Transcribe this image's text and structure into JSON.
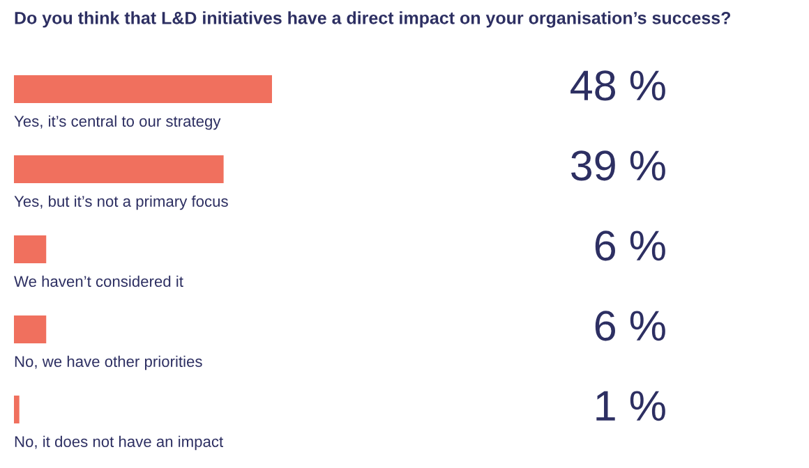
{
  "chart_data": {
    "type": "bar",
    "orientation": "horizontal",
    "title": "Do you think that L&D initiatives have a direct impact on your organisation’s success?",
    "categories": [
      "Yes, it’s central to our strategy",
      "Yes, but it’s not a primary focus",
      "We haven’t considered it",
      "No, we have other priorities",
      "No, it does not have an impact"
    ],
    "values": [
      48,
      39,
      6,
      6,
      1
    ],
    "value_labels": [
      "48 %",
      "39 %",
      "6 %",
      "6 %",
      "1 %"
    ],
    "color": "#f0705e"
  }
}
